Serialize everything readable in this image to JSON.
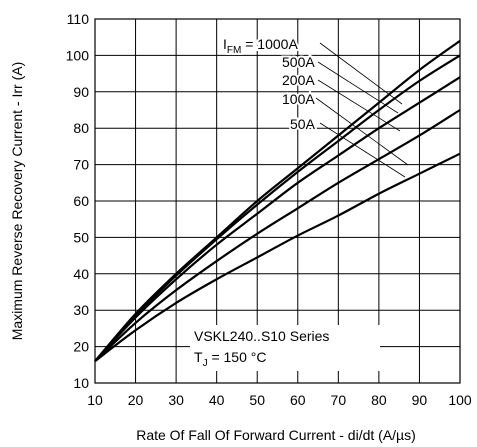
{
  "chart_data": {
    "type": "line",
    "xlabel": "Rate Of Fall Of Forward Current - di/dt (A/µs)",
    "ylabel": "Maximum Reverse Recovery Current - Irr (A)",
    "xlim": [
      10,
      100
    ],
    "ylim": [
      10,
      110
    ],
    "x_ticks": [
      "10",
      "20",
      "30",
      "40",
      "50",
      "60",
      "70",
      "80",
      "90",
      "100"
    ],
    "y_ticks": [
      "10",
      "20",
      "30",
      "40",
      "50",
      "60",
      "70",
      "80",
      "90",
      "100",
      "110"
    ],
    "grid": true,
    "annotation": {
      "series_label": "VSKL240..S10 Series",
      "tj_prefix": "T",
      "tj_sub": "J",
      "tj_value": " = 150 °C"
    },
    "label_prefix": "I",
    "label_sub": "FM",
    "series": [
      {
        "name": "1000A",
        "label_text": " = 1000A",
        "x": [
          10,
          20,
          30,
          40,
          50,
          60,
          70,
          80,
          90,
          100
        ],
        "y": [
          16,
          29,
          40,
          50,
          60,
          69,
          78,
          87,
          96,
          104
        ]
      },
      {
        "name": "500A",
        "label_text": "500A",
        "x": [
          10,
          20,
          30,
          40,
          50,
          60,
          70,
          80,
          90,
          100
        ],
        "y": [
          16,
          28.5,
          39.5,
          49.5,
          59,
          68,
          76.5,
          85,
          93,
          100
        ]
      },
      {
        "name": "200A",
        "label_text": "200A",
        "x": [
          10,
          20,
          30,
          40,
          50,
          60,
          70,
          80,
          90,
          100
        ],
        "y": [
          16,
          28,
          38.5,
          48,
          56.5,
          65,
          72.5,
          80,
          87,
          94
        ]
      },
      {
        "name": "100A",
        "label_text": "100A",
        "x": [
          10,
          20,
          30,
          40,
          50,
          60,
          70,
          80,
          90,
          100
        ],
        "y": [
          16,
          26.5,
          35.5,
          43.5,
          51,
          58,
          65,
          71.5,
          78,
          85
        ]
      },
      {
        "name": "50A",
        "label_text": "50A",
        "x": [
          10,
          20,
          30,
          40,
          50,
          60,
          70,
          80,
          90,
          100
        ],
        "y": [
          16,
          24.5,
          32,
          38.5,
          44.5,
          50.5,
          56,
          62,
          67.5,
          73
        ]
      }
    ]
  }
}
